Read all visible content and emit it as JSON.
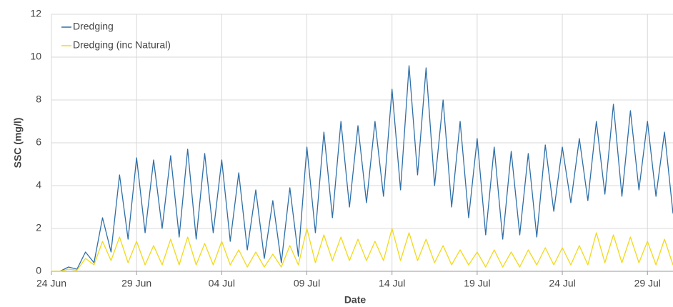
{
  "chart_data": {
    "type": "line",
    "xlabel": "Date",
    "ylabel": "SSC (mg/l)",
    "x": [
      0,
      0.5,
      1,
      1.5,
      2,
      2.5,
      3,
      3.5,
      4,
      4.5,
      5,
      5.5,
      6,
      6.5,
      7,
      7.5,
      8,
      8.5,
      9,
      9.5,
      10,
      10.5,
      11,
      11.5,
      12,
      12.5,
      13,
      13.5,
      14,
      14.5,
      15,
      15.5,
      16,
      16.5,
      17,
      17.5,
      18,
      18.5,
      19,
      19.5,
      20,
      20.5,
      21,
      21.5,
      22,
      22.5,
      23,
      23.5,
      24,
      24.5,
      25,
      25.5,
      26,
      26.5,
      27,
      27.5,
      28,
      28.5,
      29,
      29.5,
      30,
      30.5,
      31,
      31.5,
      32,
      32.5,
      33,
      33.5,
      34,
      34.5,
      35,
      35.5,
      36,
      36.5
    ],
    "series": [
      {
        "name": "Dredging",
        "color": "#2e6fa8",
        "values": [
          0,
          0,
          0.2,
          0.1,
          0.9,
          0.4,
          2.5,
          0.9,
          4.5,
          1.5,
          5.3,
          1.8,
          5.2,
          2.0,
          5.4,
          1.6,
          5.7,
          1.5,
          5.5,
          1.8,
          5.2,
          1.4,
          4.6,
          1.0,
          3.8,
          0.6,
          3.3,
          0.4,
          3.9,
          0.7,
          5.8,
          1.8,
          6.5,
          2.5,
          7.0,
          3.0,
          6.8,
          3.2,
          7.0,
          3.5,
          8.5,
          3.8,
          9.6,
          4.5,
          9.5,
          4.0,
          8.0,
          3.0,
          7.0,
          2.5,
          6.2,
          1.7,
          5.8,
          1.5,
          5.6,
          1.7,
          5.5,
          1.6,
          5.9,
          2.8,
          5.8,
          3.2,
          6.2,
          3.3,
          7.0,
          3.6,
          7.8,
          3.5,
          7.5,
          3.8,
          7.0,
          3.5,
          6.5,
          2.7
        ]
      },
      {
        "name": "Dredging (inc Natural)",
        "color": "#f2d91a",
        "values": [
          0,
          0,
          0.1,
          0.05,
          0.6,
          0.3,
          1.4,
          0.5,
          1.6,
          0.4,
          1.4,
          0.3,
          1.2,
          0.3,
          1.5,
          0.3,
          1.6,
          0.3,
          1.3,
          0.3,
          1.4,
          0.3,
          1.0,
          0.2,
          0.9,
          0.2,
          0.8,
          0.2,
          1.2,
          0.3,
          2.0,
          0.4,
          1.7,
          0.5,
          1.6,
          0.5,
          1.5,
          0.5,
          1.4,
          0.5,
          2.0,
          0.5,
          1.8,
          0.5,
          1.5,
          0.4,
          1.2,
          0.3,
          1.0,
          0.3,
          0.9,
          0.2,
          1.0,
          0.2,
          0.9,
          0.2,
          1.0,
          0.3,
          1.1,
          0.3,
          1.1,
          0.3,
          1.2,
          0.3,
          1.8,
          0.4,
          1.7,
          0.4,
          1.6,
          0.4,
          1.4,
          0.3,
          1.5,
          0.3
        ]
      }
    ],
    "xlim": [
      0,
      36.5
    ],
    "xticks": [
      {
        "value": 0,
        "label": "24 Jun"
      },
      {
        "value": 5,
        "label": "29 Jun"
      },
      {
        "value": 10,
        "label": "04 Jul"
      },
      {
        "value": 15,
        "label": "09 Jul"
      },
      {
        "value": 20,
        "label": "14 Jul"
      },
      {
        "value": 25,
        "label": "19 Jul"
      },
      {
        "value": 30,
        "label": "24 Jul"
      },
      {
        "value": 35,
        "label": "29 Jul"
      }
    ],
    "ylim": [
      0,
      12
    ],
    "yticks": [
      0,
      2,
      4,
      6,
      8,
      10,
      12
    ],
    "grid": true,
    "legend": "top-left"
  }
}
